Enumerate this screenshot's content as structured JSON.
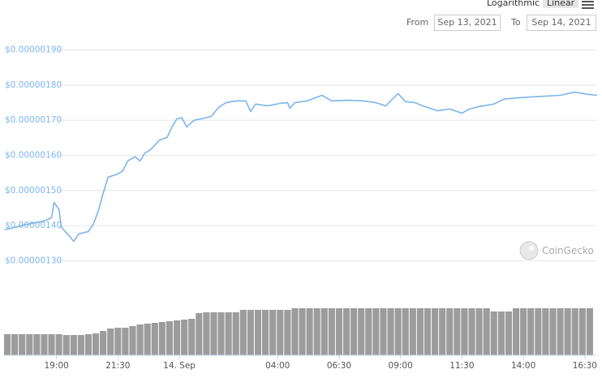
{
  "chart_data": {
    "type": "line",
    "scale_options": [
      "Logarithmic",
      "Linear"
    ],
    "selected_scale": "Linear",
    "log_scale": false,
    "from_label": "From",
    "from_date": "Sep 13, 2021",
    "to_label": "To",
    "to_date": "Sep 14, 2021",
    "watermark": "CoinGecko",
    "grid": true,
    "color": "#7cb5ec",
    "xlim": [
      16.9,
      41.0
    ],
    "xticks": [
      {
        "value": 19,
        "label": "19:00"
      },
      {
        "value": 21.5,
        "label": "21:30"
      },
      {
        "value": 24,
        "label": "14. Sep"
      },
      {
        "value": 28,
        "label": "04:00"
      },
      {
        "value": 30.5,
        "label": "06:30"
      },
      {
        "value": 33,
        "label": "09:00"
      },
      {
        "value": 35.5,
        "label": "11:30"
      },
      {
        "value": 38,
        "label": "14:00"
      },
      {
        "value": 40.5,
        "label": "16:30"
      }
    ],
    "ylim": [
      1.28e-06,
      1.92e-06
    ],
    "yticks": [
      {
        "value": 1.9e-06,
        "label": "$0.00000190"
      },
      {
        "value": 1.8e-06,
        "label": "$0.00000180"
      },
      {
        "value": 1.7e-06,
        "label": "$0.00000170"
      },
      {
        "value": 1.6e-06,
        "label": "$0.00000160"
      },
      {
        "value": 1.5e-06,
        "label": "$0.00000150"
      },
      {
        "value": 1.4e-06,
        "label": "$0.00000140"
      },
      {
        "value": 1.3e-06,
        "label": "$0.00000130"
      }
    ],
    "x": [
      16.9,
      17.7,
      18.5,
      18.8,
      18.9,
      19.1,
      19.2,
      19.5,
      19.7,
      19.9,
      20.3,
      20.5,
      20.7,
      20.9,
      21.1,
      21.5,
      21.7,
      21.9,
      22.2,
      22.4,
      22.6,
      22.8,
      23.2,
      23.5,
      23.7,
      23.9,
      24.1,
      24.3,
      24.6,
      24.9,
      25.3,
      25.6,
      25.9,
      26.3,
      26.7,
      26.9,
      27.1,
      27.6,
      28.1,
      28.4,
      28.5,
      28.7,
      29.2,
      29.8,
      30.2,
      30.9,
      31.5,
      32.0,
      32.4,
      32.9,
      33.2,
      33.6,
      33.9,
      34.5,
      35.0,
      35.5,
      35.8,
      36.2,
      36.8,
      37.2,
      37.8,
      38.5,
      39.5,
      40.1,
      40.6,
      41.0
    ],
    "values": [
      1.388e-06,
      1.402e-06,
      1.413e-06,
      1.422e-06,
      1.466e-06,
      1.446e-06,
      1.395e-06,
      1.372e-06,
      1.355e-06,
      1.376e-06,
      1.383e-06,
      1.404e-06,
      1.441e-06,
      1.492e-06,
      1.538e-06,
      1.547e-06,
      1.556e-06,
      1.584e-06,
      1.596e-06,
      1.584e-06,
      1.607e-06,
      1.614e-06,
      1.644e-06,
      1.651e-06,
      1.681e-06,
      1.704e-06,
      1.707e-06,
      1.681e-06,
      1.7e-06,
      1.704e-06,
      1.711e-06,
      1.737e-06,
      1.75e-06,
      1.755e-06,
      1.755e-06,
      1.725e-06,
      1.746e-06,
      1.741e-06,
      1.748e-06,
      1.75e-06,
      1.734e-06,
      1.75e-06,
      1.755e-06,
      1.771e-06,
      1.755e-06,
      1.757e-06,
      1.755e-06,
      1.75e-06,
      1.741e-06,
      1.776e-06,
      1.753e-06,
      1.75e-06,
      1.741e-06,
      1.727e-06,
      1.732e-06,
      1.72e-06,
      1.732e-06,
      1.739e-06,
      1.746e-06,
      1.76e-06,
      1.764e-06,
      1.767e-06,
      1.771e-06,
      1.78e-06,
      1.774e-06,
      1.771e-06
    ],
    "volume": {
      "color": "#9c9c9c",
      "y2lim": [
        0,
        60
      ],
      "x": [
        17.0,
        17.3,
        17.6,
        17.9,
        18.2,
        18.5,
        18.8,
        19.1,
        19.4,
        19.7,
        20.0,
        20.3,
        20.6,
        20.9,
        21.2,
        21.5,
        21.8,
        22.1,
        22.4,
        22.7,
        23.0,
        23.3,
        23.6,
        23.9,
        24.2,
        24.5,
        24.8,
        25.1,
        25.4,
        25.7,
        26.0,
        26.3,
        26.6,
        26.9,
        27.2,
        27.5,
        27.8,
        28.1,
        28.4,
        28.7,
        29.0,
        29.3,
        29.6,
        29.9,
        30.2,
        30.5,
        30.8,
        31.1,
        31.4,
        31.7,
        32.0,
        32.3,
        32.6,
        32.9,
        33.2,
        33.5,
        33.8,
        34.1,
        34.4,
        34.7,
        35.0,
        35.3,
        35.6,
        35.9,
        36.2,
        36.5,
        36.8,
        37.1,
        37.4,
        37.7,
        38.0,
        38.3,
        38.6,
        38.9,
        39.2,
        39.5,
        39.8,
        40.1,
        40.4,
        40.7
      ],
      "values": [
        26,
        26,
        26,
        26,
        26,
        26,
        26,
        26,
        25,
        25,
        25,
        26,
        27,
        30,
        33,
        34,
        34,
        36,
        38,
        39,
        40,
        41,
        42,
        43,
        44,
        45,
        52,
        53,
        53,
        53,
        53,
        53,
        56,
        56,
        56,
        56,
        56,
        56,
        56,
        58,
        58,
        58,
        58,
        58,
        58,
        58,
        58,
        58,
        58,
        58,
        58,
        58,
        58,
        58,
        58,
        58,
        58,
        58,
        58,
        58,
        58,
        58,
        58,
        58,
        58,
        58,
        54,
        54,
        54,
        58,
        58,
        58,
        58,
        58,
        58,
        58,
        58,
        58,
        58,
        58
      ]
    }
  }
}
